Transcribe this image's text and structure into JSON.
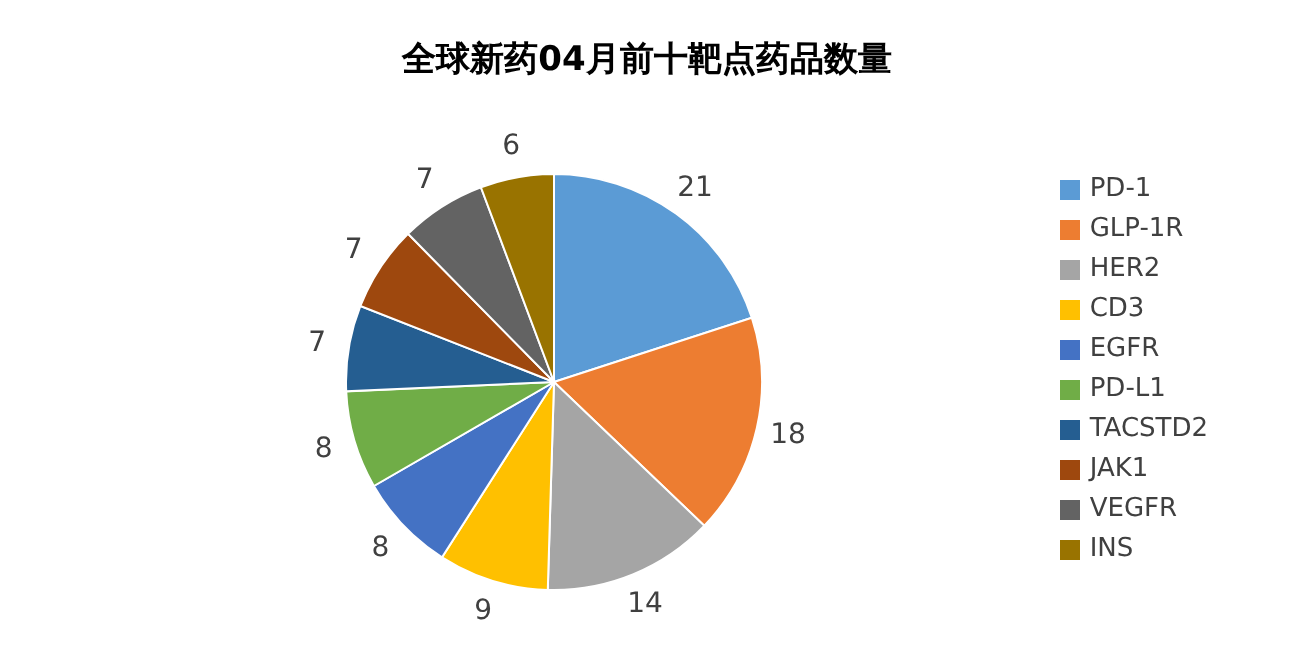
{
  "chart_data": {
    "type": "pie",
    "title": "全球新药04月前十靶点药品数量",
    "categories": [
      "PD-1",
      "GLP-1R",
      "HER2",
      "CD3",
      "EGFR",
      "PD-L1",
      "TACSTD2",
      "JAK1",
      "VEGFR",
      "INS"
    ],
    "values": [
      21,
      18,
      14,
      9,
      8,
      8,
      7,
      7,
      7,
      6
    ],
    "colors": [
      "#5b9bd5",
      "#ed7d31",
      "#a5a5a5",
      "#ffc000",
      "#4472c4",
      "#70ad47",
      "#255e91",
      "#9e480e",
      "#636363",
      "#997300"
    ],
    "data_labels": true,
    "legend": "right"
  }
}
